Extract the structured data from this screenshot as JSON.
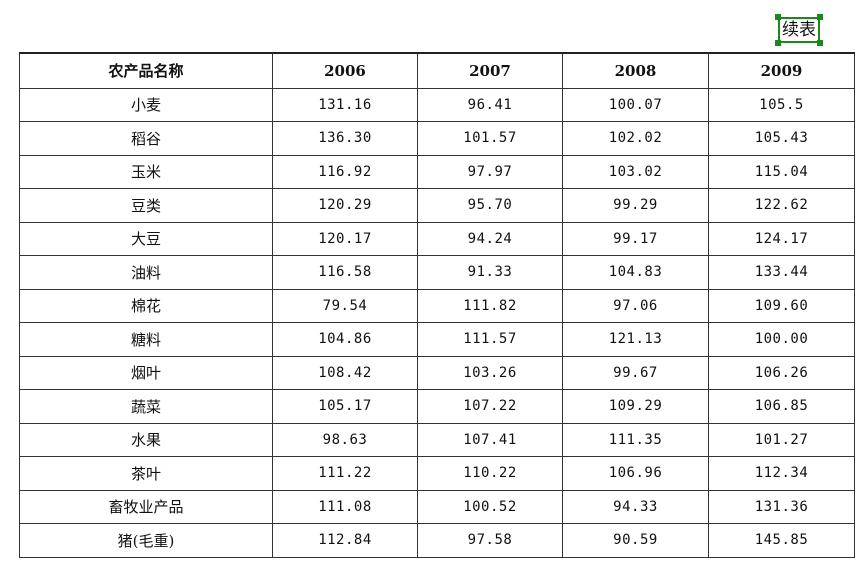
{
  "continued_label": "续表",
  "table": {
    "headers": [
      "农产品名称",
      "2006",
      "2007",
      "2008",
      "2009"
    ],
    "rows": [
      [
        "小麦",
        "131.16",
        "96.41",
        "100.07",
        "105.5"
      ],
      [
        "稻谷",
        "136.30",
        "101.57",
        "102.02",
        "105.43"
      ],
      [
        "玉米",
        "116.92",
        "97.97",
        "103.02",
        "115.04"
      ],
      [
        "豆类",
        "120.29",
        "95.70",
        "99.29",
        "122.62"
      ],
      [
        "大豆",
        "120.17",
        "94.24",
        "99.17",
        "124.17"
      ],
      [
        "油料",
        "116.58",
        "91.33",
        "104.83",
        "133.44"
      ],
      [
        "棉花",
        "79.54",
        "111.82",
        "97.06",
        "109.60"
      ],
      [
        "糖料",
        "104.86",
        "111.57",
        "121.13",
        "100.00"
      ],
      [
        "烟叶",
        "108.42",
        "103.26",
        "99.67",
        "106.26"
      ],
      [
        "蔬菜",
        "105.17",
        "107.22",
        "109.29",
        "106.85"
      ],
      [
        "水果",
        "98.63",
        "107.41",
        "111.35",
        "101.27"
      ],
      [
        "茶叶",
        "111.22",
        "110.22",
        "106.96",
        "112.34"
      ],
      [
        "畜牧业产品",
        "111.08",
        "100.52",
        "94.33",
        "131.36"
      ],
      [
        "猪(毛重)",
        "112.84",
        "97.58",
        "90.59",
        "145.85"
      ]
    ]
  },
  "colors": {
    "selection_box": "#1a8a1a"
  }
}
